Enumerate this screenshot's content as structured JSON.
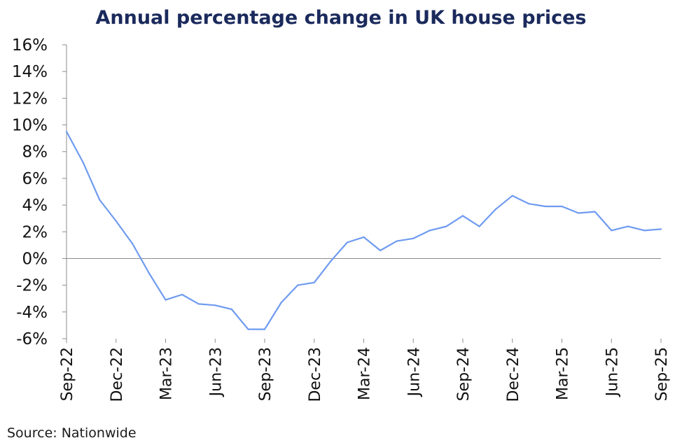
{
  "chart_data": {
    "type": "line",
    "title": "Annual percentage change in UK house prices",
    "xlabel": "",
    "ylabel": "",
    "ylim": [
      -6,
      16
    ],
    "ytick_step": 2,
    "ytick_labels": [
      "16%",
      "14%",
      "12%",
      "10%",
      "8%",
      "6%",
      "4%",
      "2%",
      "0%",
      "-2%",
      "-4%",
      "-6%"
    ],
    "xtick_labels": [
      "Sep-22",
      "Dec-22",
      "Mar-23",
      "Jun-23",
      "Sep-23",
      "Dec-23",
      "Mar-24",
      "Jun-24",
      "Sep-24",
      "Dec-24",
      "Mar-25",
      "Jun-25",
      "Sep-25"
    ],
    "x": [
      "Sep-22",
      "Oct-22",
      "Nov-22",
      "Dec-22",
      "Jan-23",
      "Feb-23",
      "Mar-23",
      "Apr-23",
      "May-23",
      "Jun-23",
      "Jul-23",
      "Aug-23",
      "Sep-23",
      "Oct-23",
      "Nov-23",
      "Dec-23",
      "Jan-24",
      "Feb-24",
      "Mar-24",
      "Apr-24",
      "May-24",
      "Jun-24",
      "Jul-24",
      "Aug-24",
      "Sep-24",
      "Oct-24",
      "Nov-24",
      "Dec-24",
      "Jan-25",
      "Feb-25",
      "Mar-25",
      "Apr-25",
      "May-25",
      "Jun-25",
      "Jul-25",
      "Aug-25",
      "Sep-25"
    ],
    "series": [
      {
        "values": [
          9.5,
          7.2,
          4.4,
          2.8,
          1.1,
          -1.1,
          -3.1,
          -2.7,
          -3.4,
          -3.5,
          -3.8,
          -5.3,
          -5.3,
          -3.3,
          -2.0,
          -1.8,
          -0.2,
          1.2,
          1.6,
          0.6,
          1.3,
          1.5,
          2.1,
          2.4,
          3.2,
          2.4,
          3.7,
          4.7,
          4.1,
          3.9,
          3.9,
          3.4,
          3.5,
          2.1,
          2.4,
          2.1,
          2.2
        ],
        "color": "#6f9bf0"
      }
    ],
    "grid": false,
    "legend": "none",
    "zero_line": true,
    "colors": {
      "axis": "#8c8c8c",
      "title": "#1b2a5c",
      "text": "#111111"
    }
  },
  "source": "Source: Nationwide"
}
